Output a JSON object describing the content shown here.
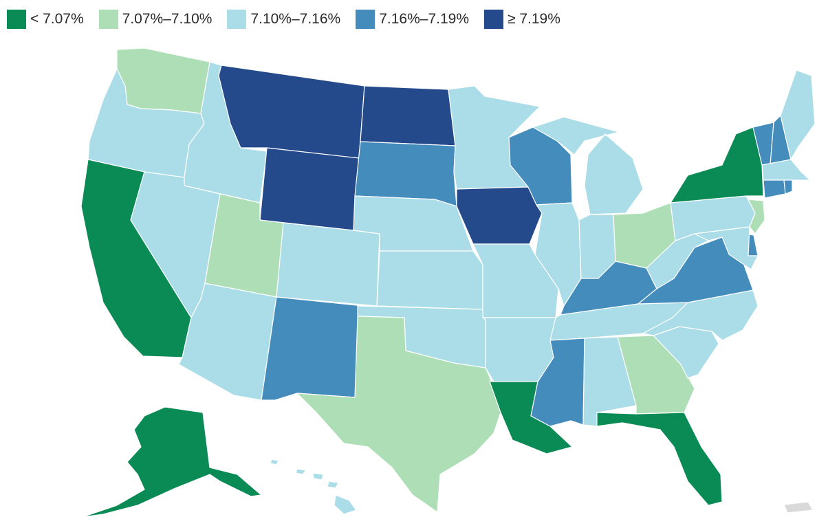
{
  "legend": [
    {
      "label": "< 7.07%",
      "color": "#0a8a55"
    },
    {
      "label": "7.07%–7.10%",
      "color": "#addeb6"
    },
    {
      "label": "7.10%–7.16%",
      "color": "#abdde8"
    },
    {
      "label": "7.16%–7.19%",
      "color": "#438cbc"
    },
    {
      "label": "≥ 7.19%",
      "color": "#244a8b"
    }
  ],
  "colors": {
    "c1": "#0a8a55",
    "c2": "#addeb6",
    "c3": "#abdde8",
    "c4": "#438cbc",
    "c5": "#244a8b",
    "nodata": "#d9d9d9"
  },
  "states": [
    {
      "id": "WA",
      "bin": "c2"
    },
    {
      "id": "OR",
      "bin": "c3"
    },
    {
      "id": "CA",
      "bin": "c1"
    },
    {
      "id": "ID",
      "bin": "c3"
    },
    {
      "id": "NV",
      "bin": "c3"
    },
    {
      "id": "MT",
      "bin": "c5"
    },
    {
      "id": "WY",
      "bin": "c5"
    },
    {
      "id": "UT",
      "bin": "c2"
    },
    {
      "id": "AZ",
      "bin": "c3"
    },
    {
      "id": "CO",
      "bin": "c3"
    },
    {
      "id": "NM",
      "bin": "c4"
    },
    {
      "id": "ND",
      "bin": "c5"
    },
    {
      "id": "SD",
      "bin": "c4"
    },
    {
      "id": "NE",
      "bin": "c3"
    },
    {
      "id": "KS",
      "bin": "c3"
    },
    {
      "id": "OK",
      "bin": "c3"
    },
    {
      "id": "TX",
      "bin": "c2"
    },
    {
      "id": "MN",
      "bin": "c3"
    },
    {
      "id": "IA",
      "bin": "c5"
    },
    {
      "id": "MO",
      "bin": "c3"
    },
    {
      "id": "AR",
      "bin": "c3"
    },
    {
      "id": "LA",
      "bin": "c1"
    },
    {
      "id": "WI",
      "bin": "c4"
    },
    {
      "id": "IL",
      "bin": "c3"
    },
    {
      "id": "MI",
      "bin": "c3"
    },
    {
      "id": "IN",
      "bin": "c3"
    },
    {
      "id": "OH",
      "bin": "c2"
    },
    {
      "id": "KY",
      "bin": "c4"
    },
    {
      "id": "TN",
      "bin": "c3"
    },
    {
      "id": "MS",
      "bin": "c4"
    },
    {
      "id": "AL",
      "bin": "c3"
    },
    {
      "id": "GA",
      "bin": "c2"
    },
    {
      "id": "FL",
      "bin": "c1"
    },
    {
      "id": "SC",
      "bin": "c3"
    },
    {
      "id": "NC",
      "bin": "c3"
    },
    {
      "id": "VA",
      "bin": "c4"
    },
    {
      "id": "WV",
      "bin": "c3"
    },
    {
      "id": "PA",
      "bin": "c3"
    },
    {
      "id": "NY",
      "bin": "c1"
    },
    {
      "id": "VT",
      "bin": "c4"
    },
    {
      "id": "NH",
      "bin": "c4"
    },
    {
      "id": "ME",
      "bin": "c3"
    },
    {
      "id": "MA",
      "bin": "c3"
    },
    {
      "id": "CT",
      "bin": "c4"
    },
    {
      "id": "RI",
      "bin": "c4"
    },
    {
      "id": "NJ",
      "bin": "c2"
    },
    {
      "id": "DE",
      "bin": "c4"
    },
    {
      "id": "MD",
      "bin": "c3"
    },
    {
      "id": "AK",
      "bin": "c1"
    },
    {
      "id": "HI",
      "bin": "c3"
    },
    {
      "id": "PR",
      "bin": "nodata"
    }
  ]
}
